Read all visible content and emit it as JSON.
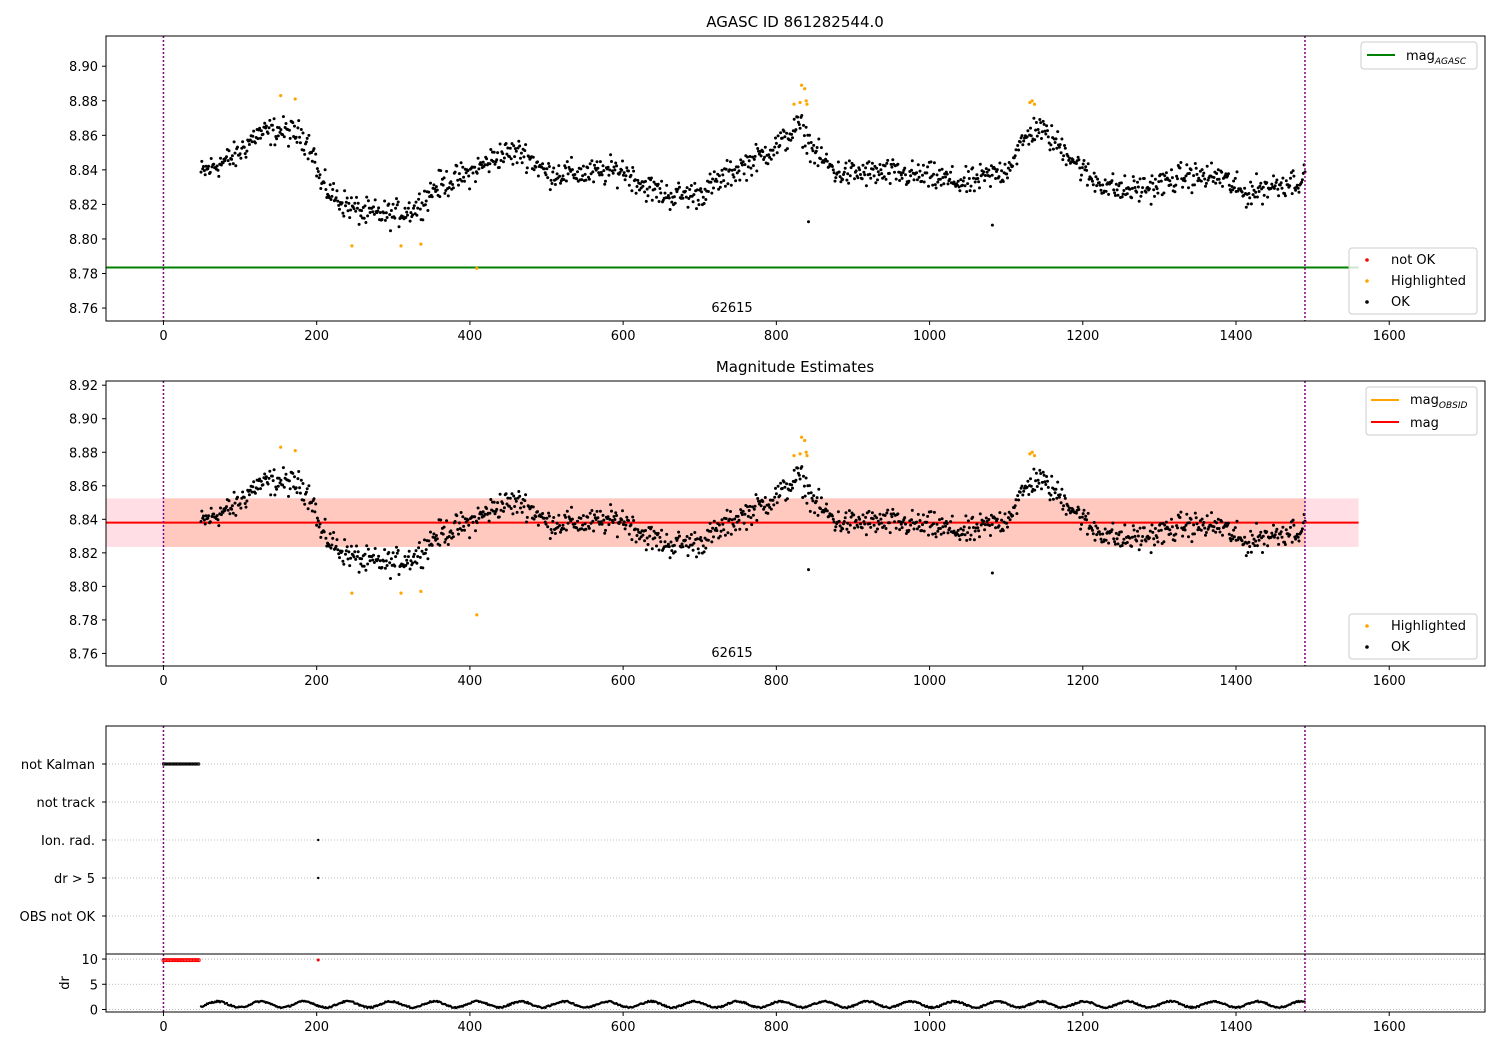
{
  "chart_data": [
    {
      "type": "scatter",
      "title": "AGASC ID 861282544.0",
      "xlim": [
        -75,
        1725
      ],
      "ylim": [
        8.7525,
        8.9175
      ],
      "xticks": [
        0,
        200,
        400,
        600,
        800,
        1000,
        1200,
        1400,
        1600
      ],
      "yticks": [
        8.76,
        8.78,
        8.8,
        8.82,
        8.84,
        8.86,
        8.88,
        8.9
      ],
      "vlines": [
        0,
        1490
      ],
      "annotation": {
        "text": "62615",
        "x": 745,
        "y": 8.757
      },
      "mag_agasc": 8.7835,
      "series_legend": [
        "not OK",
        "Highlighted",
        "OK"
      ],
      "series_legend_position": "lower-right",
      "line_legend": [
        "mag",
        "AGASC"
      ],
      "line_legend_position": "upper-right",
      "highlighted": [
        [
          153,
          8.883
        ],
        [
          172,
          8.881
        ],
        [
          246,
          8.796
        ],
        [
          310,
          8.796
        ],
        [
          336,
          8.797
        ],
        [
          409,
          8.783
        ],
        [
          823,
          8.878
        ],
        [
          831,
          8.879
        ],
        [
          833,
          8.889
        ],
        [
          837,
          8.887
        ],
        [
          839,
          8.88
        ],
        [
          840,
          8.878
        ],
        [
          1131,
          8.879
        ],
        [
          1134,
          8.88
        ],
        [
          1137,
          8.878
        ]
      ],
      "ok_count": 1300,
      "ok_range": [
        49,
        1490
      ]
    },
    {
      "type": "scatter",
      "title": "Magnitude Estimates",
      "xlim": [
        -75,
        1725
      ],
      "ylim": [
        8.7525,
        8.9225
      ],
      "xticks": [
        0,
        200,
        400,
        600,
        800,
        1000,
        1200,
        1400,
        1600
      ],
      "yticks": [
        8.76,
        8.78,
        8.8,
        8.82,
        8.84,
        8.86,
        8.88,
        8.9,
        8.92
      ],
      "vlines": [
        0,
        1490
      ],
      "annotation": {
        "text": "62615",
        "x": 745,
        "y": 8.757
      },
      "mag": 8.838,
      "mag_band": [
        8.8235,
        8.8525
      ],
      "mag_obsid": 8.838,
      "series_legend": [
        "Highlighted",
        "OK"
      ],
      "series_legend_position": "lower-right",
      "line_legend": [
        [
          "mag",
          "OBSID"
        ],
        [
          "mag",
          ""
        ]
      ],
      "line_legend_position": "upper-right"
    },
    {
      "type": "scatter",
      "xlim": [
        -75,
        1725
      ],
      "xticks": [
        0,
        200,
        400,
        600,
        800,
        1000,
        1200,
        1400,
        1600
      ],
      "vlines": [
        0,
        1490
      ],
      "flag_rows": [
        "not Kalman",
        "not track",
        "Ion. rad.",
        "dr > 5",
        "OBS not OK"
      ],
      "flag_points": {
        "not Kalman": [
          0,
          46
        ],
        "Ion. rad.": [
          202
        ],
        "dr > 5": [
          202
        ]
      },
      "ylabel": "dr",
      "ylim": [
        -0.5,
        11
      ],
      "yticks": [
        0,
        5,
        10
      ],
      "dr_red_range": [
        0,
        46
      ],
      "dr_red_value": 9.8,
      "dr_red_extra": [
        202
      ]
    }
  ],
  "colors": {
    "ok": "#000000",
    "highlighted": "#ffa500",
    "not_ok": "#ff0000",
    "mag_agasc": "#008000",
    "mag": "#ff0000",
    "mag_obsid": "#ffa500",
    "band_outer": "#ffc0cb",
    "band_inner": "#ffa07a",
    "vline": "#800080"
  }
}
